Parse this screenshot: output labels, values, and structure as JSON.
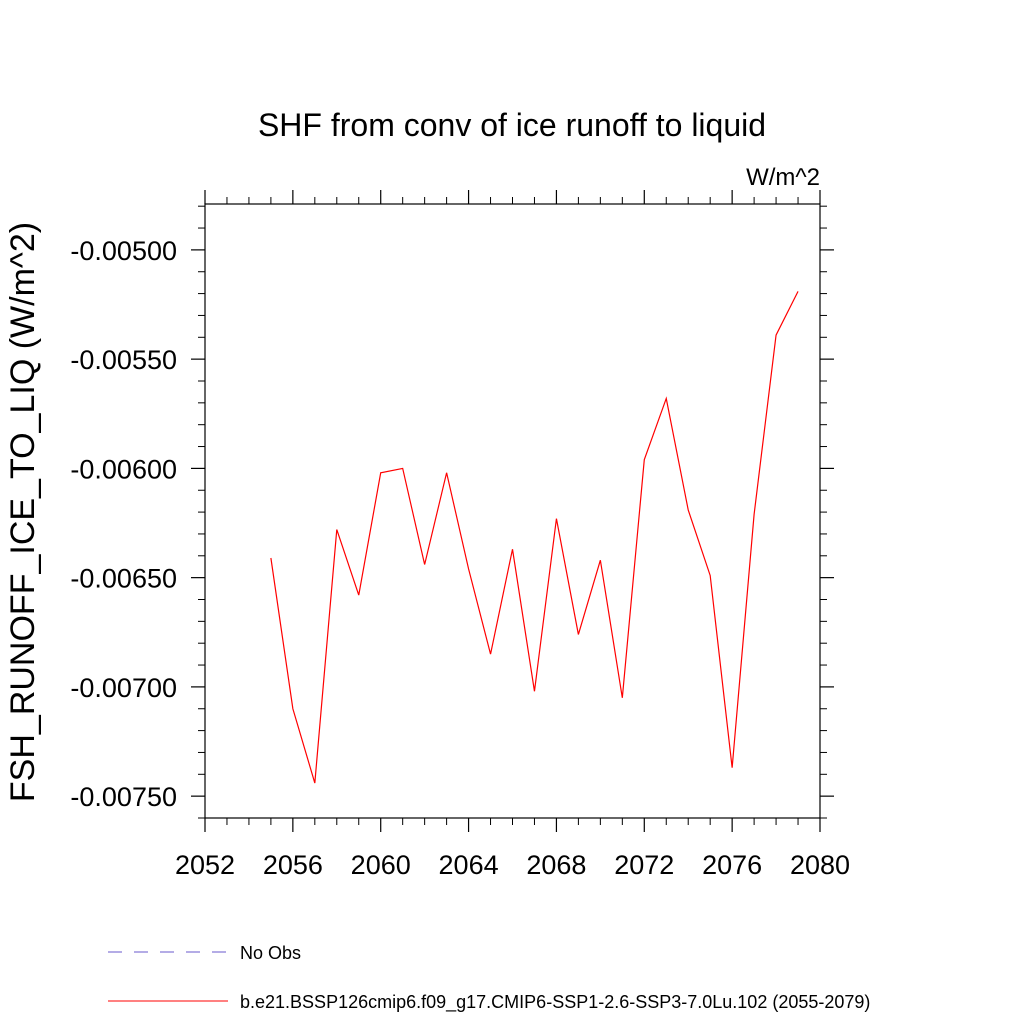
{
  "chart_data": {
    "type": "line",
    "title": "SHF from conv of ice runoff to liquid",
    "units_label": "W/m^2",
    "ylabel": "FSH_RUNOFF_ICE_TO_LIQ  (W/m^2)",
    "xlabel": "",
    "xlim": [
      2052,
      2080
    ],
    "ylim": [
      -0.0076,
      -0.00479
    ],
    "x_ticks": [
      2052,
      2056,
      2060,
      2064,
      2068,
      2072,
      2076,
      2080
    ],
    "x_tick_labels": [
      "2052",
      "2056",
      "2060",
      "2064",
      "2068",
      "2072",
      "2076",
      "2080"
    ],
    "y_ticks": [
      -0.0075,
      -0.007,
      -0.0065,
      -0.006,
      -0.0055,
      -0.005
    ],
    "y_tick_labels": [
      "-0.00750",
      "-0.00700",
      "-0.00650",
      "-0.00600",
      "-0.00550",
      "-0.00500"
    ],
    "grid": false,
    "legend_position": "bottom-left",
    "series": [
      {
        "name": "b.e21.BSSP126cmip6.f09_g17.CMIP6-SSP1-2.6-SSP3-7.0Lu.102 (2055-2079)",
        "color": "#ff0000",
        "x": [
          2055,
          2056,
          2057,
          2058,
          2059,
          2060,
          2061,
          2062,
          2063,
          2064,
          2065,
          2066,
          2067,
          2068,
          2069,
          2070,
          2071,
          2072,
          2073,
          2074,
          2075,
          2076,
          2077,
          2078,
          2079
        ],
        "y": [
          -0.00641,
          -0.0071,
          -0.00744,
          -0.00628,
          -0.00658,
          -0.00602,
          -0.006,
          -0.00644,
          -0.00602,
          -0.00646,
          -0.00685,
          -0.00637,
          -0.00702,
          -0.00623,
          -0.00676,
          -0.00642,
          -0.00705,
          -0.00596,
          -0.00568,
          -0.00619,
          -0.00649,
          -0.00737,
          -0.00621,
          -0.00539,
          -0.00519
        ]
      }
    ],
    "legend": [
      {
        "label": "No Obs",
        "color": "#6a5acd",
        "style": "dashed"
      },
      {
        "label": "b.e21.BSSP126cmip6.f09_g17.CMIP6-SSP1-2.6-SSP3-7.0Lu.102 (2055-2079)",
        "color": "#ff0000",
        "style": "solid"
      }
    ]
  }
}
